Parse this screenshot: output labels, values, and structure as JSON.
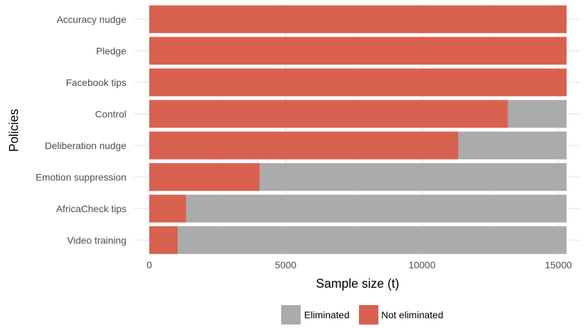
{
  "chart_data": {
    "type": "bar",
    "orientation": "horizontal",
    "stacked": true,
    "xlabel": "Sample size (t)",
    "ylabel": "Policies",
    "xlim": [
      -500,
      15300
    ],
    "xticks": [
      0,
      5000,
      10000,
      15000
    ],
    "grid": true,
    "legend_position": "bottom",
    "categories": [
      "Accuracy nudge",
      "Pledge",
      "Facebook tips",
      "Control",
      "Deliberation nudge",
      "Emotion suppression",
      "AfricaCheck tips",
      "Video training"
    ],
    "total": 15300,
    "series": [
      {
        "name": "Not eliminated",
        "color": "#D96150",
        "values": [
          15300,
          15300,
          15300,
          13150,
          11330,
          4050,
          1350,
          1050
        ]
      },
      {
        "name": "Eliminated",
        "color": "#ABABAB",
        "values": [
          0,
          0,
          0,
          2150,
          3970,
          11250,
          13950,
          14250
        ]
      }
    ],
    "legend": [
      {
        "label": "Eliminated",
        "color": "#ABABAB"
      },
      {
        "label": "Not eliminated",
        "color": "#D96150"
      }
    ]
  }
}
